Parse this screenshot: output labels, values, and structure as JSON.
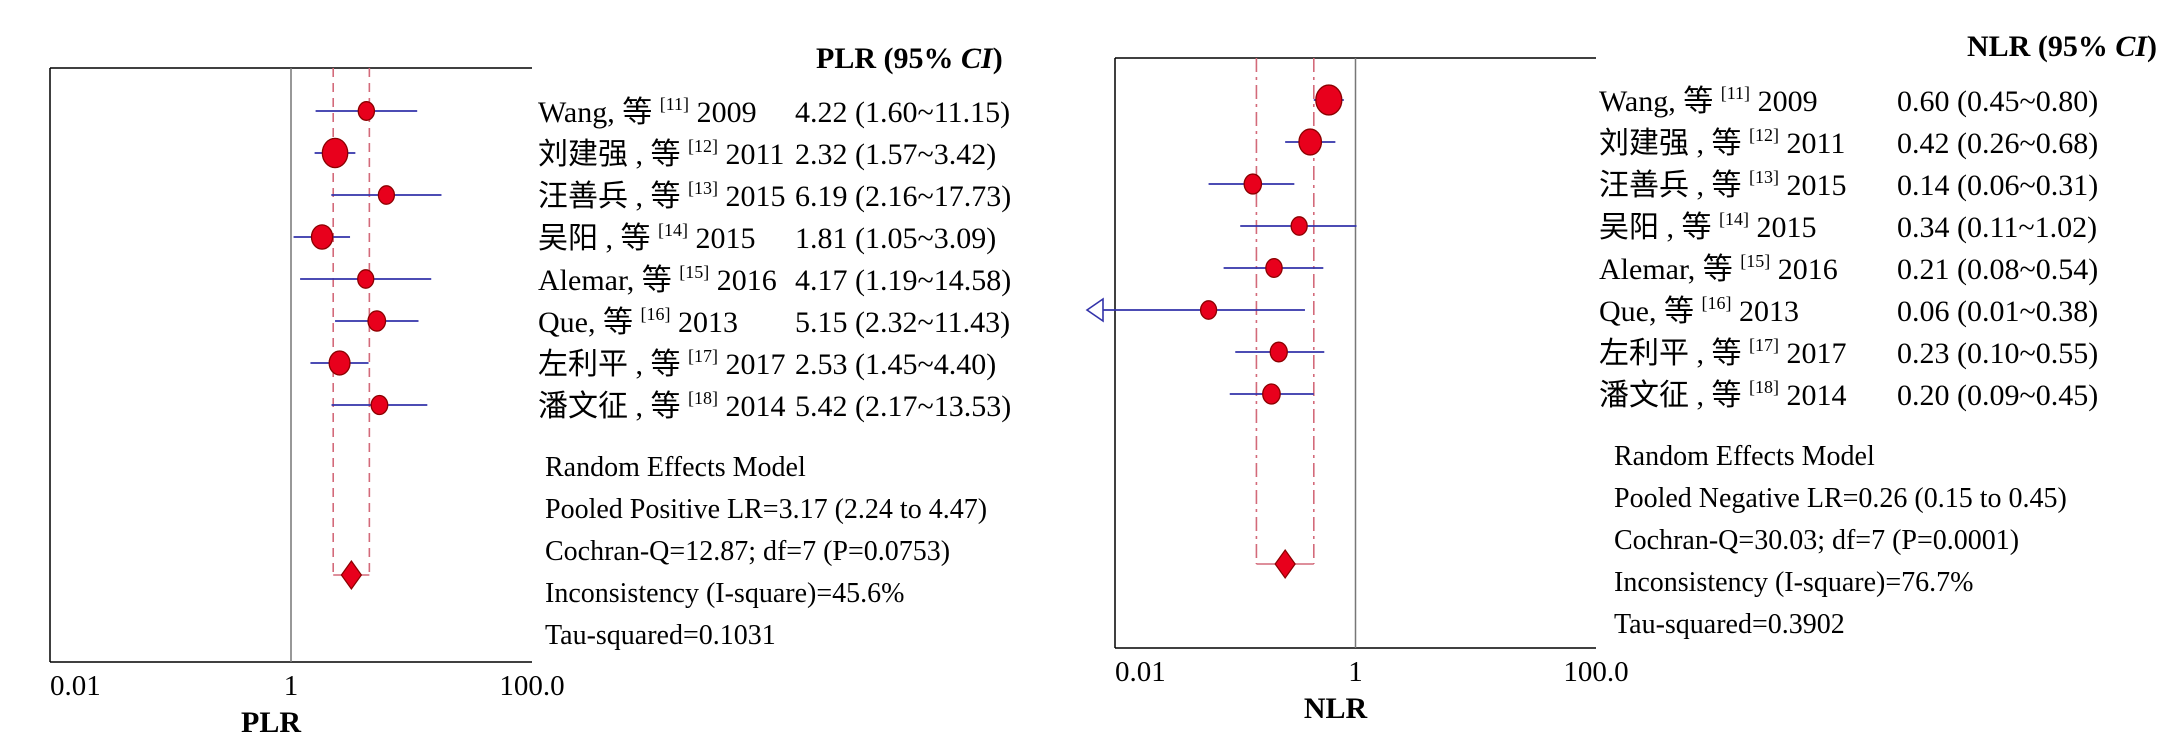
{
  "chart_data": [
    {
      "type": "forest",
      "scale": "log",
      "xlabel": "PLR",
      "tick_labels": [
        "0.01",
        "1",
        "100.0"
      ],
      "ticks": [
        0.01,
        1,
        100
      ],
      "xlim": [
        0.01,
        100
      ],
      "header": "PLR (95% CI)",
      "studies": [
        {
          "author": "Wang, 等 ",
          "ref": "[11]",
          "year": "2009",
          "ci_text": "4.22 (1.60~11.15)",
          "estimate": 4.22,
          "lower": 1.6,
          "upper": 11.15
        },
        {
          "author": "刘建强 , 等 ",
          "ref": "[12]",
          "year": "2011",
          "ci_text": "2.32 (1.57~3.42)",
          "estimate": 2.32,
          "lower": 1.57,
          "upper": 3.42
        },
        {
          "author": "汪善兵 , 等 ",
          "ref": "[13]",
          "year": "2015",
          "ci_text": "6.19 (2.16~17.73)",
          "estimate": 6.19,
          "lower": 2.16,
          "upper": 17.73
        },
        {
          "author": "吴阳 , 等 ",
          "ref": "[14]",
          "year": "2015",
          "ci_text": "1.81 (1.05~3.09)",
          "estimate": 1.81,
          "lower": 1.05,
          "upper": 3.09
        },
        {
          "author": "Alemar, 等 ",
          "ref": "[15]",
          "year": "2016",
          "ci_text": "4.17 (1.19~14.58)",
          "estimate": 4.17,
          "lower": 1.19,
          "upper": 14.58
        },
        {
          "author": "Que, 等 ",
          "ref": "[16]",
          "year": "2013",
          "ci_text": "5.15 (2.32~11.43)",
          "estimate": 5.15,
          "lower": 2.32,
          "upper": 11.43
        },
        {
          "author": "左利平 , 等 ",
          "ref": "[17]",
          "year": "2017",
          "ci_text": "2.53 (1.45~4.40)",
          "estimate": 2.53,
          "lower": 1.45,
          "upper": 4.4
        },
        {
          "author": "潘文征 , 等 ",
          "ref": "[18]",
          "year": "2014",
          "ci_text": "5.42 (2.17~13.53)",
          "estimate": 5.42,
          "lower": 2.17,
          "upper": 13.53
        }
      ],
      "pooled": {
        "estimate": 3.17,
        "lower": 2.24,
        "upper": 4.47
      },
      "summary": [
        "Random Effects Model",
        "Pooled Positive LR=3.17 (2.24 to 4.47)",
        "Cochran-Q=12.87; df=7 (P=0.0753)",
        "Inconsistency (I-square)=45.6%",
        "Tau-squared=0.1031"
      ]
    },
    {
      "type": "forest",
      "scale": "log",
      "xlabel": "NLR",
      "tick_labels": [
        "0.01",
        "1",
        "100.0"
      ],
      "ticks": [
        0.01,
        1,
        100
      ],
      "xlim": [
        0.01,
        100
      ],
      "header": "NLR (95% CI)",
      "studies": [
        {
          "author": "Wang, 等 ",
          "ref": "[11]",
          "year": "2009",
          "ci_text": "0.60 (0.45~0.80)",
          "estimate": 0.6,
          "lower": 0.45,
          "upper": 0.8
        },
        {
          "author": "刘建强 , 等 ",
          "ref": "[12]",
          "year": "2011",
          "ci_text": "0.42 (0.26~0.68)",
          "estimate": 0.42,
          "lower": 0.26,
          "upper": 0.68
        },
        {
          "author": "汪善兵 , 等 ",
          "ref": "[13]",
          "year": "2015",
          "ci_text": "0.14 (0.06~0.31)",
          "estimate": 0.14,
          "lower": 0.06,
          "upper": 0.31
        },
        {
          "author": "吴阳 , 等 ",
          "ref": "[14]",
          "year": "2015",
          "ci_text": "0.34 (0.11~1.02)",
          "estimate": 0.34,
          "lower": 0.11,
          "upper": 1.02
        },
        {
          "author": "Alemar, 等 ",
          "ref": "[15]",
          "year": "2016",
          "ci_text": "0.21 (0.08~0.54)",
          "estimate": 0.21,
          "lower": 0.08,
          "upper": 0.54
        },
        {
          "author": "Que, 等 ",
          "ref": "[16]",
          "year": "2013",
          "ci_text": "0.06 (0.01~0.38)",
          "estimate": 0.06,
          "lower": 0.01,
          "upper": 0.38
        },
        {
          "author": "左利平 , 等 ",
          "ref": "[17]",
          "year": "2017",
          "ci_text": "0.23 (0.10~0.55)",
          "estimate": 0.23,
          "lower": 0.1,
          "upper": 0.55
        },
        {
          "author": "潘文征 , 等 ",
          "ref": "[18]",
          "year": "2014",
          "ci_text": "0.20 (0.09~0.45)",
          "estimate": 0.2,
          "lower": 0.09,
          "upper": 0.45
        }
      ],
      "pooled": {
        "estimate": 0.26,
        "lower": 0.15,
        "upper": 0.45
      },
      "summary": [
        "Random Effects Model",
        "Pooled Negative LR=0.26 (0.15 to 0.45)",
        "Cochran-Q=30.03; df=7 (P=0.0001)",
        "Inconsistency (I-square)=76.7%",
        "Tau-squared=0.3902"
      ]
    }
  ],
  "colors": {
    "marker_fill": "#e8001c",
    "marker_stroke": "#8b0000",
    "ci_line": "#3333aa",
    "pooled_bounds": "#d36a7a",
    "null_line": "#777777",
    "frame": "#000000"
  }
}
